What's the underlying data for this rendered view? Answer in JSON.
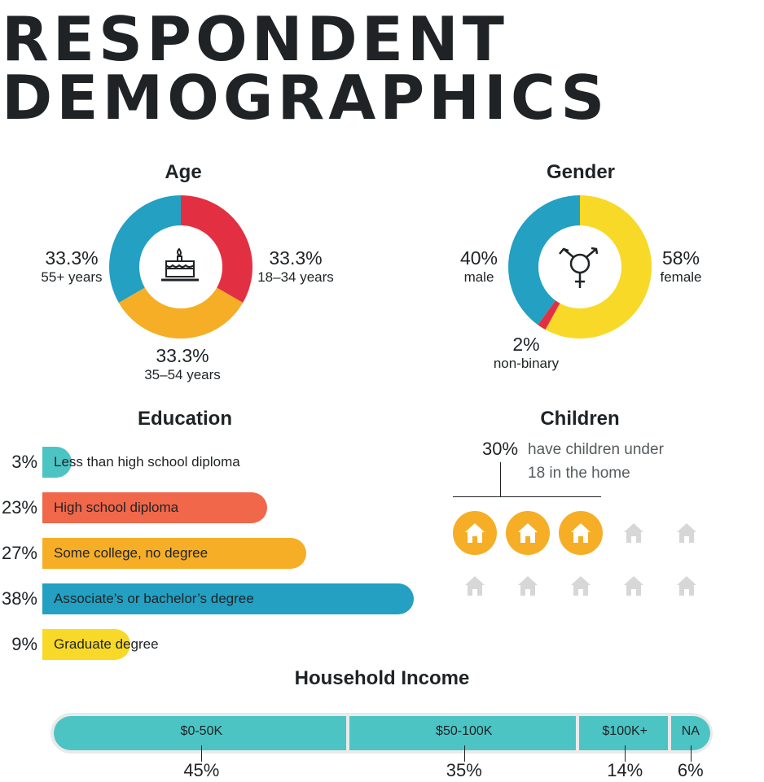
{
  "title_line1": "RESPONDENT",
  "title_line2": "DEMOGRAPHICS",
  "colors": {
    "red": "#e23042",
    "orange": "#f5ae26",
    "blue": "#23a0c2",
    "yellow": "#f8d928",
    "teal": "#4cc4c4",
    "coral": "#f0674a",
    "grey_house": "#d7d7d7",
    "text": "#1f2326"
  },
  "age": {
    "title": "Age",
    "icon": "birthday-cake-icon",
    "slices": [
      {
        "pct": "33.3%",
        "label": "18–34 years",
        "value": 33.3,
        "color": "#e23042"
      },
      {
        "pct": "33.3%",
        "label": "35–54 years",
        "value": 33.3,
        "color": "#f5ae26"
      },
      {
        "pct": "33.3%",
        "label": "55+ years",
        "value": 33.3,
        "color": "#23a0c2"
      }
    ]
  },
  "gender": {
    "title": "Gender",
    "icon": "transgender-symbol-icon",
    "slices": [
      {
        "pct": "58%",
        "label": "female",
        "value": 58,
        "color": "#f8d928"
      },
      {
        "pct": "2%",
        "label": "non-binary",
        "value": 2,
        "color": "#e23042"
      },
      {
        "pct": "40%",
        "label": "male",
        "value": 40,
        "color": "#23a0c2"
      }
    ]
  },
  "education": {
    "title": "Education",
    "items": [
      {
        "pct": "3%",
        "label": "Less than high school diploma",
        "value": 3,
        "color": "#4cc4c4"
      },
      {
        "pct": "23%",
        "label": "High school diploma",
        "value": 23,
        "color": "#f0674a"
      },
      {
        "pct": "27%",
        "label": "Some college, no degree",
        "value": 27,
        "color": "#f5ae26"
      },
      {
        "pct": "38%",
        "label": "Associate’s or bachelor’s degree",
        "value": 38,
        "color": "#23a0c2"
      },
      {
        "pct": "9%",
        "label": "Graduate degree",
        "value": 9,
        "color": "#f8d928"
      }
    ]
  },
  "children": {
    "title": "Children",
    "pct": "30%",
    "text_line1": "have children under",
    "text_line2": "18 in the home",
    "icon": "house-icon",
    "highlighted": 3,
    "total": 10
  },
  "income": {
    "title": "Household Income",
    "segments": [
      {
        "label": "$0-50K",
        "pct": "45%",
        "value": 45
      },
      {
        "label": "$50-100K",
        "pct": "35%",
        "value": 35
      },
      {
        "label": "$100K+",
        "pct": "14%",
        "value": 14
      },
      {
        "label": "NA",
        "pct": "6%",
        "value": 6
      }
    ]
  },
  "chart_data": [
    {
      "type": "pie",
      "title": "Age",
      "categories": [
        "18–34 years",
        "35–54 years",
        "55+ years"
      ],
      "values": [
        33.3,
        33.3,
        33.3
      ]
    },
    {
      "type": "pie",
      "title": "Gender",
      "categories": [
        "female",
        "non-binary",
        "male"
      ],
      "values": [
        58,
        2,
        40
      ]
    },
    {
      "type": "bar",
      "title": "Education",
      "categories": [
        "Less than high school diploma",
        "High school diploma",
        "Some college, no degree",
        "Associate’s or bachelor’s degree",
        "Graduate degree"
      ],
      "values": [
        3,
        23,
        27,
        38,
        9
      ]
    },
    {
      "type": "bar",
      "title": "Children",
      "categories": [
        "have children under 18 in the home"
      ],
      "values": [
        30
      ]
    },
    {
      "type": "bar",
      "title": "Household Income",
      "categories": [
        "$0-50K",
        "$50-100K",
        "$100K+",
        "NA"
      ],
      "values": [
        45,
        35,
        14,
        6
      ]
    }
  ]
}
